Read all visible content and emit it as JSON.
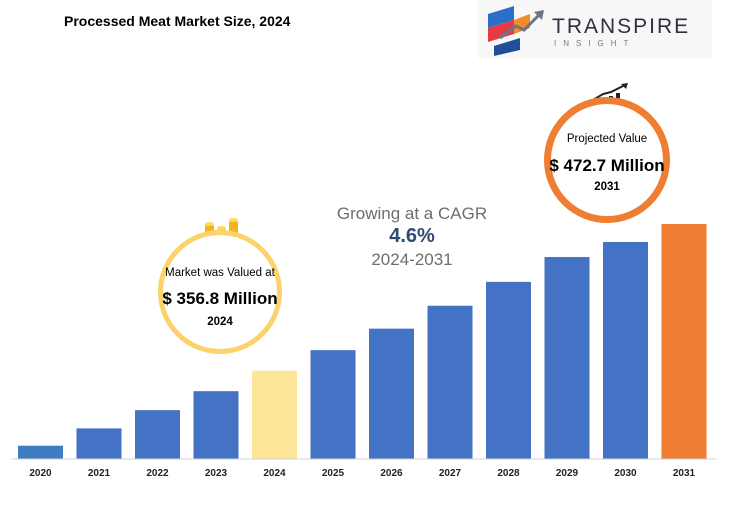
{
  "title": "Processed Meat Market Size, 2024",
  "logo": {
    "word": "TRANSPIRE",
    "sub": "INSIGHT"
  },
  "cagr": {
    "text": "Growing at a CAGR",
    "value": "4.6%",
    "period": "2024-2031"
  },
  "callouts": {
    "left": {
      "label": "Market was Valued at",
      "value": "$ 356.8 Million",
      "year": "2024"
    },
    "right": {
      "label": "Projected Value",
      "value": "$ 472.7  Million",
      "year": "2031"
    }
  },
  "chart_data": {
    "type": "bar",
    "title": "Processed Meat Market Size, 2024",
    "categories": [
      "2020",
      "2021",
      "2022",
      "2023",
      "2024",
      "2025",
      "2026",
      "2027",
      "2028",
      "2029",
      "2030",
      "2031"
    ],
    "values": [
      297.5,
      311.2,
      325.6,
      340.6,
      356.8,
      373.0,
      390.0,
      408.1,
      427.0,
      446.6,
      458.5,
      472.7
    ],
    "ylim": [
      287,
      480
    ],
    "colors": [
      "#3f7cc2",
      "#4472c4",
      "#4472c4",
      "#4472c4",
      "#fde59a",
      "#4472c4",
      "#4472c4",
      "#4472c4",
      "#4472c4",
      "#4472c4",
      "#4472c4",
      "#ef7d32"
    ],
    "grid": false
  }
}
